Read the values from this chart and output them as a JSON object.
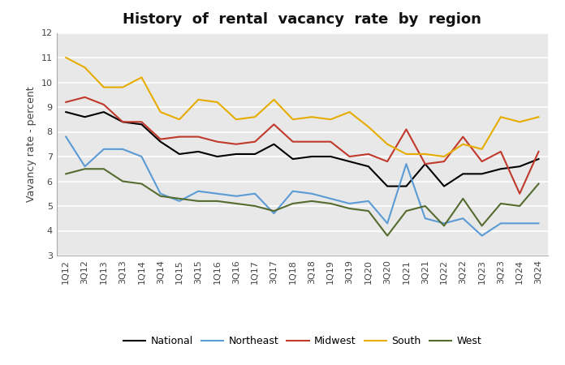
{
  "title": "History  of  rental  vacancy  rate  by  region",
  "ylabel": "Vavancy rate - percent",
  "ylim": [
    3,
    12
  ],
  "yticks": [
    3,
    4,
    5,
    6,
    7,
    8,
    9,
    10,
    11,
    12
  ],
  "labels": [
    "National",
    "Northeast",
    "Midwest",
    "South",
    "West"
  ],
  "colors": [
    "#000000",
    "#5b9bd5",
    "#c0392b",
    "#e6ac00",
    "#556b2f"
  ],
  "quarters": [
    "1Q12",
    "3Q12",
    "1Q13",
    "3Q13",
    "1Q14",
    "3Q14",
    "1Q15",
    "3Q15",
    "1Q16",
    "3Q16",
    "1Q17",
    "3Q17",
    "1Q18",
    "3Q18",
    "1Q19",
    "3Q19",
    "1Q20",
    "3Q20",
    "1Q21",
    "3Q21",
    "1Q22",
    "3Q22",
    "1Q23",
    "3Q23",
    "1Q24",
    "3Q24"
  ],
  "national": [
    8.8,
    8.6,
    8.8,
    8.4,
    8.3,
    7.6,
    7.1,
    7.2,
    7.0,
    7.1,
    7.1,
    7.5,
    6.9,
    7.0,
    7.0,
    6.8,
    6.6,
    5.8,
    5.8,
    6.7,
    5.8,
    6.3,
    6.3,
    6.5,
    6.6,
    6.9
  ],
  "northeast": [
    7.8,
    6.6,
    7.3,
    7.3,
    7.0,
    5.5,
    5.2,
    5.6,
    5.5,
    5.4,
    5.5,
    4.7,
    5.6,
    5.5,
    5.3,
    5.1,
    5.2,
    4.3,
    6.7,
    4.5,
    4.3,
    4.5,
    3.8,
    4.3,
    4.3,
    4.3
  ],
  "midwest": [
    9.2,
    9.4,
    9.1,
    8.4,
    8.4,
    7.7,
    7.8,
    7.8,
    7.6,
    7.5,
    7.6,
    8.3,
    7.6,
    7.6,
    7.6,
    7.0,
    7.1,
    6.8,
    8.1,
    6.7,
    6.8,
    7.8,
    6.8,
    7.2,
    5.5,
    7.2
  ],
  "south": [
    11.0,
    10.6,
    9.8,
    9.8,
    10.2,
    8.8,
    8.5,
    9.3,
    9.2,
    8.5,
    8.6,
    9.3,
    8.5,
    8.6,
    8.5,
    8.8,
    8.2,
    7.5,
    7.1,
    7.1,
    7.0,
    7.5,
    7.3,
    8.6,
    8.4,
    8.6
  ],
  "west": [
    6.3,
    6.5,
    6.5,
    6.0,
    5.9,
    5.4,
    5.3,
    5.2,
    5.2,
    5.1,
    5.0,
    4.8,
    5.1,
    5.2,
    5.1,
    4.9,
    4.8,
    3.8,
    4.8,
    5.0,
    4.2,
    5.3,
    4.2,
    5.1,
    5.0,
    5.9
  ],
  "background_color": "#e8e8e8",
  "grid_color": "#ffffff",
  "fig_bg": "#ffffff",
  "linewidth": 1.5,
  "title_fontsize": 13,
  "axis_label_fontsize": 9,
  "tick_fontsize": 8,
  "legend_fontsize": 9
}
